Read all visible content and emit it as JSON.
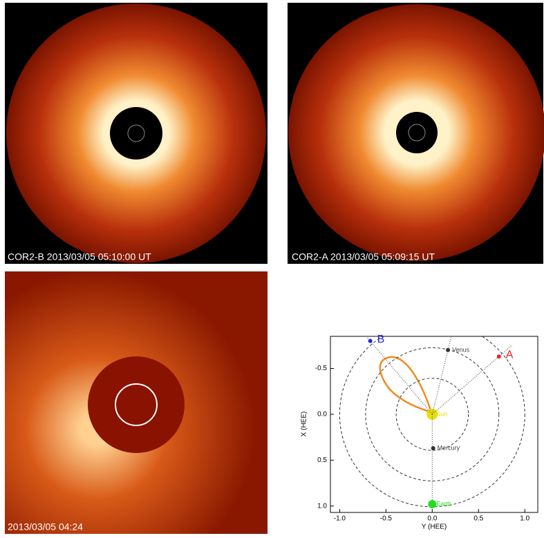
{
  "panels": [
    {
      "caption": "COR2-B 2013/03/05 05:10:00 UT"
    },
    {
      "caption": "COR2-A 2013/03/05 05:09:15 UT"
    },
    {
      "caption": "2013/03/05 04:24"
    }
  ],
  "chart_data": {
    "type": "scatter",
    "xlabel": "Y (HEE)",
    "ylabel": "X (HEE)",
    "xlim": [
      -1.1,
      1.14
    ],
    "ylim": [
      1.07,
      -0.85
    ],
    "xticks": [
      {
        "value": -1,
        "label": "-1.0"
      },
      {
        "value": -0.5,
        "label": "-0.5"
      },
      {
        "value": 0,
        "label": "0.0"
      },
      {
        "value": 0.5,
        "label": "0.5"
      },
      {
        "value": 1,
        "label": "1.0"
      }
    ],
    "yticks": [
      {
        "value": -0.5,
        "label": "-0.5"
      },
      {
        "value": 0,
        "label": "0.0"
      },
      {
        "value": 0.5,
        "label": "0.5"
      },
      {
        "value": 1,
        "label": "1.0"
      }
    ],
    "orbits": [
      0.39,
      0.72,
      1.0
    ],
    "series": [
      {
        "name": "Sun",
        "color": "#e8e000",
        "x": [
          0
        ],
        "values": [
          0
        ]
      },
      {
        "name": "Mercury",
        "color": "#333333",
        "x": [
          0.01
        ],
        "values": [
          0.37
        ]
      },
      {
        "name": "Venus",
        "color": "#333333",
        "x": [
          0.17
        ],
        "values": [
          -0.7
        ]
      },
      {
        "name": "Earth",
        "color": "#22dd22",
        "x": [
          0
        ],
        "values": [
          0.98
        ]
      },
      {
        "name": "A",
        "color": "#ee2222",
        "x": [
          0.72
        ],
        "values": [
          -0.63
        ]
      },
      {
        "name": "B",
        "color": "#2222ee",
        "x": [
          -0.67
        ],
        "values": [
          -0.8
        ]
      }
    ]
  }
}
